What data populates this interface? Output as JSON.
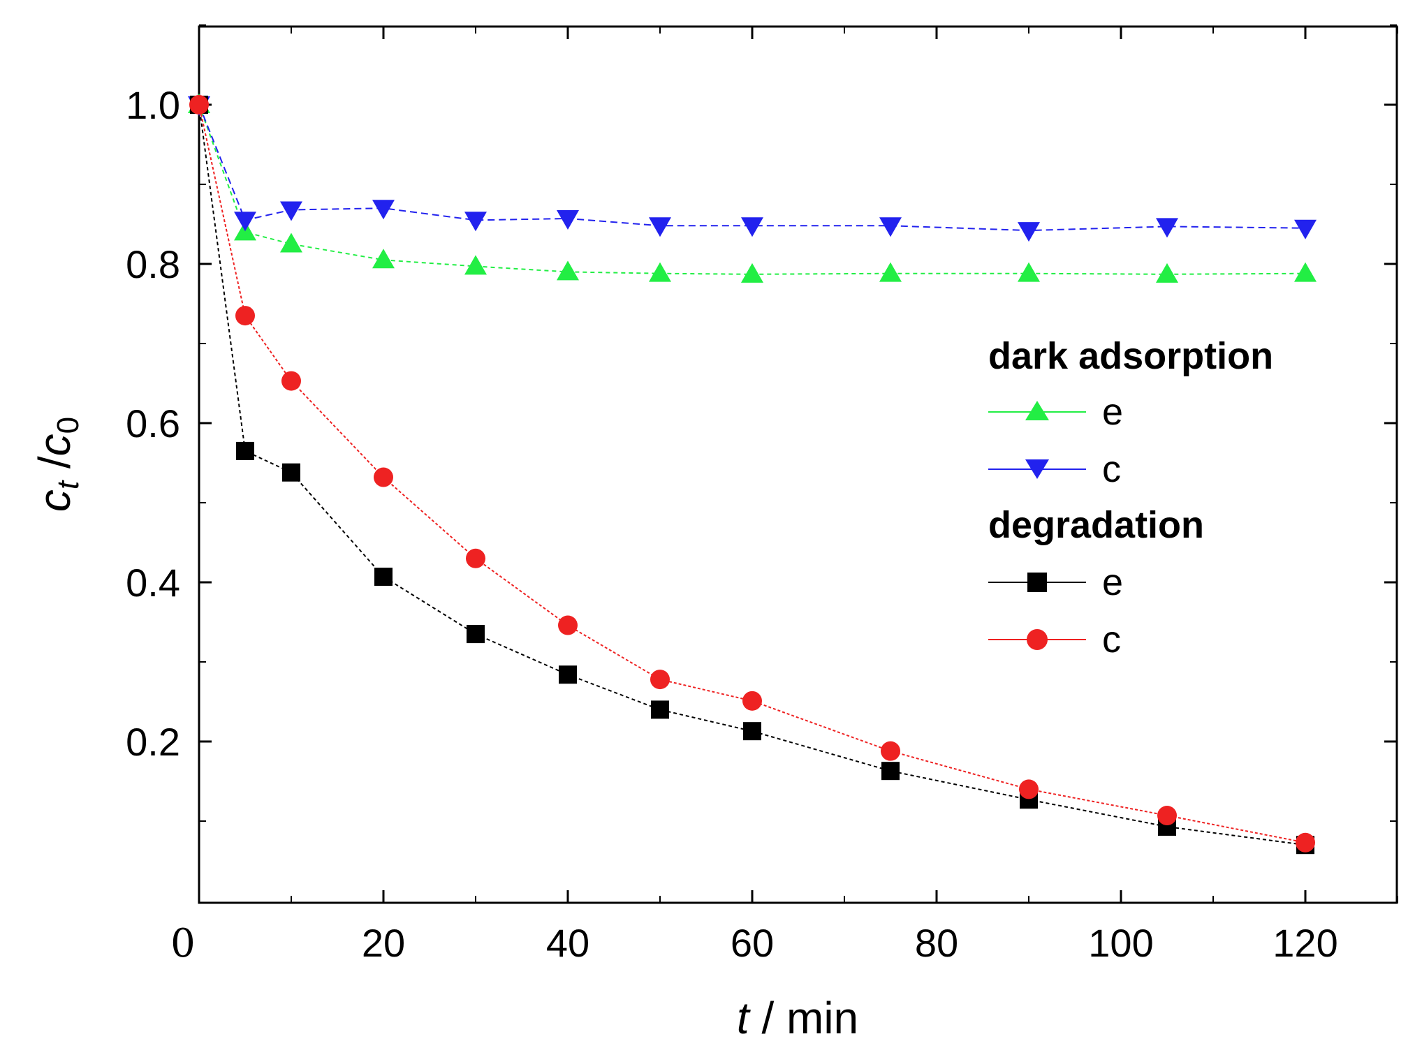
{
  "chart_data": {
    "type": "line",
    "xlabel_italic": "t",
    "xlabel_rest": " / min",
    "ylabel_c": "c",
    "ylabel_t": "t",
    "ylabel_sep": " /",
    "ylabel_zero": "0",
    "xlim": [
      0,
      130
    ],
    "ylim": [
      0,
      1.1
    ],
    "x_ticks": [
      0,
      20,
      40,
      60,
      80,
      100,
      120
    ],
    "x_tick_labels": [
      "0",
      "20",
      "40",
      "60",
      "80",
      "100",
      "120"
    ],
    "y_ticks": [
      0.2,
      0.4,
      0.6,
      0.8,
      1.0
    ],
    "y_tick_labels": [
      "0.2",
      "0.4",
      "0.6",
      "0.8",
      "1.0"
    ],
    "legend": {
      "groups": [
        {
          "heading": "dark adsorption",
          "entries": [
            "e",
            "c"
          ]
        },
        {
          "heading": "degradation",
          "entries": [
            "e",
            "c"
          ]
        }
      ],
      "placement": "right"
    },
    "series": [
      {
        "name": "dark adsorption e",
        "group": "dark adsorption",
        "label": "e",
        "marker": "triangle-up",
        "color": "#22ee44",
        "dash": "6,5",
        "x": [
          0,
          5,
          10,
          20,
          30,
          40,
          50,
          60,
          75,
          90,
          105,
          120
        ],
        "y": [
          1.0,
          0.84,
          0.825,
          0.805,
          0.797,
          0.79,
          0.788,
          0.787,
          0.788,
          0.788,
          0.787,
          0.788
        ]
      },
      {
        "name": "dark adsorption c",
        "group": "dark adsorption",
        "label": "c",
        "marker": "triangle-down",
        "color": "#2222ee",
        "dash": "10,6",
        "x": [
          0,
          5,
          10,
          20,
          30,
          40,
          50,
          60,
          75,
          90,
          105,
          120
        ],
        "y": [
          1.0,
          0.855,
          0.868,
          0.87,
          0.855,
          0.857,
          0.848,
          0.848,
          0.848,
          0.842,
          0.847,
          0.845
        ]
      },
      {
        "name": "degradation e",
        "group": "degradation",
        "label": "e",
        "marker": "square",
        "color": "#000000",
        "dash": "5,4",
        "x": [
          0,
          5,
          10,
          20,
          30,
          40,
          50,
          60,
          75,
          90,
          105,
          120
        ],
        "y": [
          1.0,
          0.565,
          0.538,
          0.407,
          0.335,
          0.284,
          0.24,
          0.213,
          0.163,
          0.127,
          0.093,
          0.07
        ]
      },
      {
        "name": "degradation c",
        "group": "degradation",
        "label": "c",
        "marker": "circle",
        "color": "#ee2222",
        "dash": "4,3",
        "x": [
          0,
          5,
          10,
          20,
          30,
          40,
          50,
          60,
          75,
          90,
          105,
          120
        ],
        "y": [
          1.0,
          0.735,
          0.653,
          0.532,
          0.43,
          0.346,
          0.278,
          0.251,
          0.188,
          0.14,
          0.107,
          0.073
        ]
      }
    ]
  }
}
